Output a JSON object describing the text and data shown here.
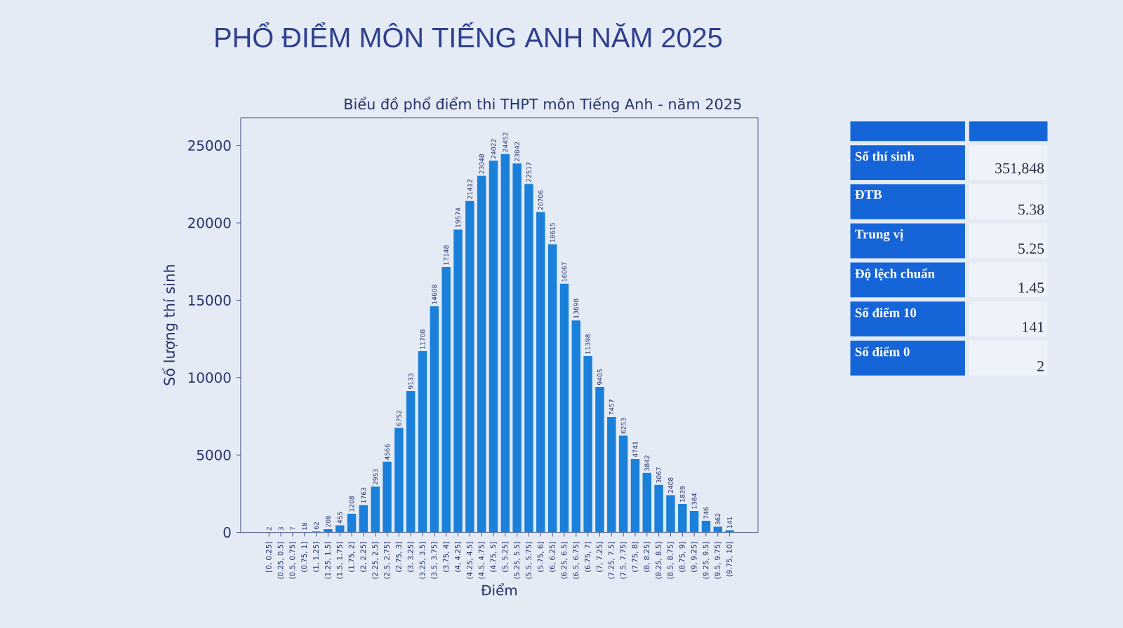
{
  "chart_data": [
    {
      "type": "bar",
      "title": "PHỔ ĐIỂM MÔN TIẾNG ANH NĂM 2025",
      "subtitle": "Biểu đồ phổ điểm thi THPT môn Tiếng Anh - năm 2025",
      "xlabel": "Điểm",
      "ylabel": "Số lượng thí sinh",
      "categories": [
        "[0, 0.25]",
        "(0.25, 0.5]",
        "(0.5, 0.75]",
        "(0.75, 1]",
        "(1, 1.25]",
        "(1.25, 1.5]",
        "(1.5, 1.75]",
        "(1.75, 2]",
        "(2, 2.25]",
        "(2.25, 2.5]",
        "(2.5, 2.75]",
        "(2.75, 3]",
        "(3, 3.25]",
        "(3.25, 3.5]",
        "(3.5, 3.75]",
        "(3.75, 4]",
        "(4, 4.25]",
        "(4.25, 4.5]",
        "(4.5, 4.75]",
        "(4.75, 5]",
        "(5, 5.25]",
        "(5.25, 5.5]",
        "(5.5, 5.75]",
        "(5.75, 6]",
        "(6, 6.25]",
        "(6.25, 6.5]",
        "(6.5, 6.75]",
        "(6.75, 7]",
        "(7, 7.25]",
        "(7.25, 7.5]",
        "(7.5, 7.75]",
        "(7.75, 8]",
        "(8, 8.25]",
        "(8.25, 8.5]",
        "(8.5, 8.75]",
        "(8.75, 9]",
        "(9, 9.25]",
        "(9.25, 9.5]",
        "(9.5, 9.75]",
        "(9.75, 10]"
      ],
      "values": [
        2,
        3,
        7,
        18,
        62,
        208,
        455,
        1208,
        1763,
        2953,
        4566,
        6752,
        9133,
        11708,
        14608,
        17148,
        19574,
        21412,
        23048,
        24022,
        24452,
        23842,
        22517,
        20706,
        18615,
        16067,
        13698,
        11398,
        9405,
        7457,
        6253,
        4741,
        3842,
        3067,
        2408,
        1839,
        1384,
        746,
        362,
        141
      ],
      "color": "#1a80d9",
      "ylim": [
        0,
        26800
      ],
      "yticks": [
        0,
        5000,
        10000,
        15000,
        20000,
        25000
      ],
      "data_labels": true
    },
    {
      "type": "other",
      "categories": [
        "Số thí sinh",
        "ĐTB",
        "Trung vị",
        "Độ lệch chuẩn",
        "Số điểm 10",
        "Số điểm 0"
      ],
      "value_labels": [
        "351,848",
        "5.38",
        "5.25",
        "1.45",
        "141",
        "2"
      ]
    }
  ]
}
